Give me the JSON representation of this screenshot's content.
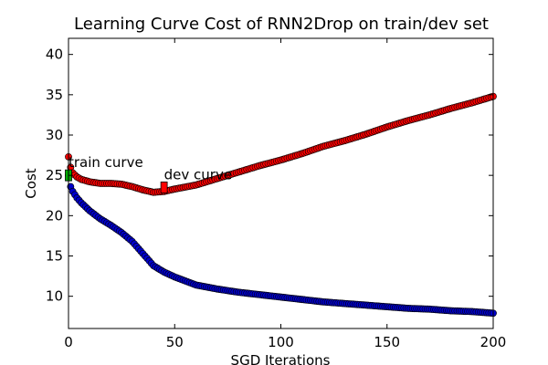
{
  "chart_data": {
    "type": "scatter",
    "title": "Learning Curve Cost of RNN2Drop on train/dev set",
    "xlabel": "SGD Iterations",
    "ylabel": "Cost",
    "xlim": [
      0,
      200
    ],
    "ylim": [
      6,
      42
    ],
    "xticks": [
      0,
      50,
      100,
      150,
      200
    ],
    "yticks": [
      10,
      15,
      20,
      25,
      30,
      35,
      40
    ],
    "grid": false,
    "series": [
      {
        "color": "#ff0000",
        "marker": "circle",
        "curve": [
          [
            0,
            27.3
          ],
          [
            1,
            26.0
          ],
          [
            2,
            25.3
          ],
          [
            4,
            24.8
          ],
          [
            6,
            24.5
          ],
          [
            10,
            24.2
          ],
          [
            15,
            24.0
          ],
          [
            20,
            24.0
          ],
          [
            25,
            23.9
          ],
          [
            30,
            23.6
          ],
          [
            35,
            23.2
          ],
          [
            40,
            22.9
          ],
          [
            45,
            23.0
          ],
          [
            50,
            23.3
          ],
          [
            60,
            23.8
          ],
          [
            70,
            24.6
          ],
          [
            80,
            25.4
          ],
          [
            90,
            26.2
          ],
          [
            100,
            26.9
          ],
          [
            110,
            27.7
          ],
          [
            120,
            28.6
          ],
          [
            130,
            29.3
          ],
          [
            140,
            30.1
          ],
          [
            150,
            31.0
          ],
          [
            160,
            31.8
          ],
          [
            170,
            32.5
          ],
          [
            180,
            33.3
          ],
          [
            190,
            34.0
          ],
          [
            200,
            34.8
          ]
        ]
      },
      {
        "color": "#0000cc",
        "marker": "circle",
        "curve": [
          [
            0,
            25.0
          ],
          [
            1,
            23.6
          ],
          [
            2,
            23.0
          ],
          [
            4,
            22.2
          ],
          [
            6,
            21.6
          ],
          [
            10,
            20.6
          ],
          [
            15,
            19.6
          ],
          [
            20,
            18.8
          ],
          [
            25,
            17.9
          ],
          [
            30,
            16.8
          ],
          [
            35,
            15.3
          ],
          [
            40,
            13.8
          ],
          [
            45,
            13.0
          ],
          [
            50,
            12.4
          ],
          [
            55,
            11.9
          ],
          [
            60,
            11.4
          ],
          [
            70,
            10.9
          ],
          [
            80,
            10.5
          ],
          [
            90,
            10.2
          ],
          [
            100,
            9.9
          ],
          [
            110,
            9.6
          ],
          [
            120,
            9.3
          ],
          [
            130,
            9.1
          ],
          [
            140,
            8.9
          ],
          [
            150,
            8.7
          ],
          [
            160,
            8.5
          ],
          [
            170,
            8.4
          ],
          [
            180,
            8.2
          ],
          [
            190,
            8.1
          ],
          [
            200,
            7.9
          ]
        ]
      }
    ],
    "annotations": [
      {
        "text": "train curve",
        "x": 0,
        "y": 25.0,
        "marker_color": "#00aa00"
      },
      {
        "text": "dev curve",
        "x": 45,
        "y": 23.5,
        "marker_color": "#ff0000"
      }
    ]
  }
}
